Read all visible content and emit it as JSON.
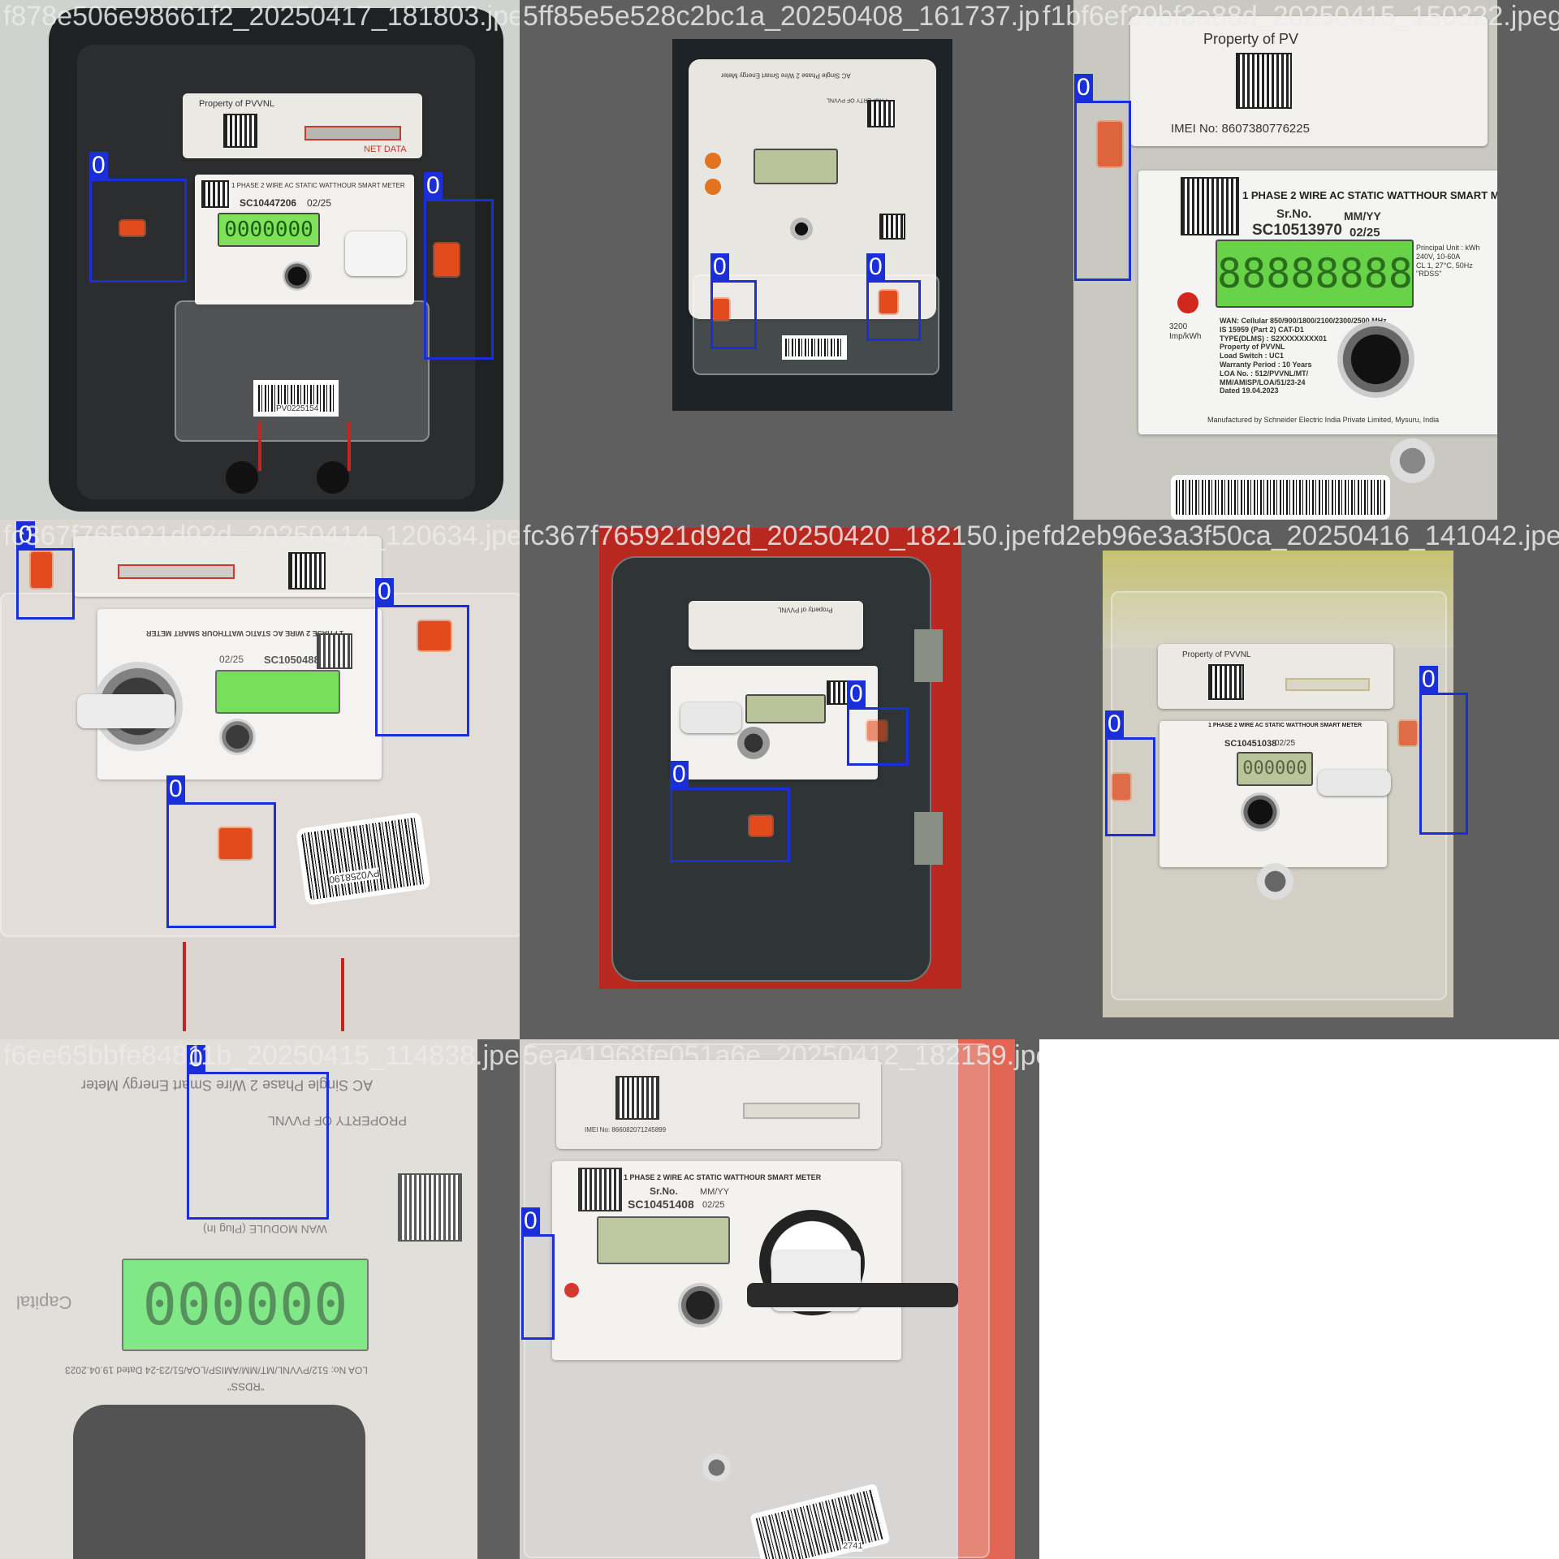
{
  "tiles": [
    {
      "filename": "f878e506e98661f2_20250417_181803.jpeg",
      "meter": {
        "owner": "Property of PVVNL",
        "title": "1 PHASE 2 WIRE AC STATIC WATTHOUR SMART METER",
        "serial": "SC10447206",
        "date": "02/25",
        "display": "0000000",
        "barcode": "PV0225154",
        "net": "NET DATA"
      },
      "detections": [
        {
          "label": "0"
        },
        {
          "label": "0"
        }
      ]
    },
    {
      "filename": "5ff85e5e528c2bc1a_20250408_161737.jpeg",
      "meter": {
        "title": "AC Single Phase 2 Wire Smart Energy Meter",
        "display": "",
        "owner": "PROPERTY OF PVVNL"
      },
      "detections": [
        {
          "label": "0"
        },
        {
          "label": "0"
        }
      ]
    },
    {
      "filename": "f1bf6ef29bf3a88d_20250415_150322.jpeg",
      "meter": {
        "owner": "Property of PV",
        "imei": "IMEI No: 8607380776225",
        "title": "1 PHASE 2 WIRE AC STATIC WATTHOUR SMART M",
        "serial_label": "Sr.No.",
        "mm_label": "MM/YY",
        "serial": "SC10513970",
        "date": "02/25",
        "display": "88888888",
        "imp": "3200 Imp/kWh",
        "specs": "WAN: Cellular 850/900/1800/2100/2300/2500 MHz\nIS 15959 (Part 2) CAT-D1\nTYPE(DLMS) : S2XXXXXXXX01\nProperty of PVVNL\nLoad Switch : UC1\nWarranty Period : 10 Years\nLOA No. : 512/PVVNL/MT/\nMM/AMISP/LOA/51/23-24\nDated 19.04.2023",
        "maker": "Manufactured by Schneider Electric India Private Limited, Mysuru, India",
        "unit": "Principal Unit : kWh\n240V, 10-60A\nCL 1, 27°C, 50Hz\n\"RDSS\""
      },
      "detections": [
        {
          "label": "0"
        }
      ]
    },
    {
      "filename": "fc367f765921d92d_20250414_120634.jpeg",
      "meter": {
        "title": "1 PHASE 2 WIRE AC STATIC WATTHOUR SMART METER",
        "serial": "SC10504886",
        "date": "02/25",
        "barcode": "PV0258190",
        "display": ""
      },
      "detections": [
        {
          "label": "0"
        },
        {
          "label": "0"
        },
        {
          "label": "0"
        }
      ]
    },
    {
      "filename": "fc367f765921d92d_20250420_182150.jpeg",
      "meter": {
        "owner": "Property of PVVNL",
        "display": ""
      },
      "detections": [
        {
          "label": "0"
        },
        {
          "label": "0"
        }
      ]
    },
    {
      "filename": "fd2eb96e3a3f50ca_20250416_141042.jpeg",
      "meter": {
        "owner": "Property of PVVNL",
        "title": "1 PHASE 2 WIRE AC STATIC WATTHOUR SMART METER",
        "serial": "SC10451038",
        "date": "02/25",
        "display": "000000"
      },
      "detections": [
        {
          "label": "0"
        },
        {
          "label": "0"
        }
      ]
    },
    {
      "filename": "f6ee65bbfe84811b_20250415_114838.jpeg",
      "meter": {
        "title": "AC Single Phase 2 Wire Smart Energy Meter",
        "owner": "PROPERTY OF PVVNL",
        "display": "000000",
        "loa": "LOA No: 512/PVVNL/MT/MM/AMISP/LOA/51/23-24 Dated 19.04.2023",
        "rdss": "\"RDSS\"",
        "module": "WAN MODULE (Plug In)",
        "brand": "Capital"
      },
      "detections": [
        {
          "label": "0"
        }
      ]
    },
    {
      "filename": "5ea41968fe051a6e_20250412_182159.jpeg",
      "meter": {
        "title": "1 PHASE 2 WIRE AC STATIC WATTHOUR SMART METER",
        "serial_label": "Sr.No.",
        "mm_label": "MM/YY",
        "serial": "SC10451408",
        "date": "02/25",
        "display": "",
        "barcode": "2741",
        "imei": "IMEI No: 866082071245899"
      },
      "detections": [
        {
          "label": "0"
        }
      ]
    }
  ]
}
